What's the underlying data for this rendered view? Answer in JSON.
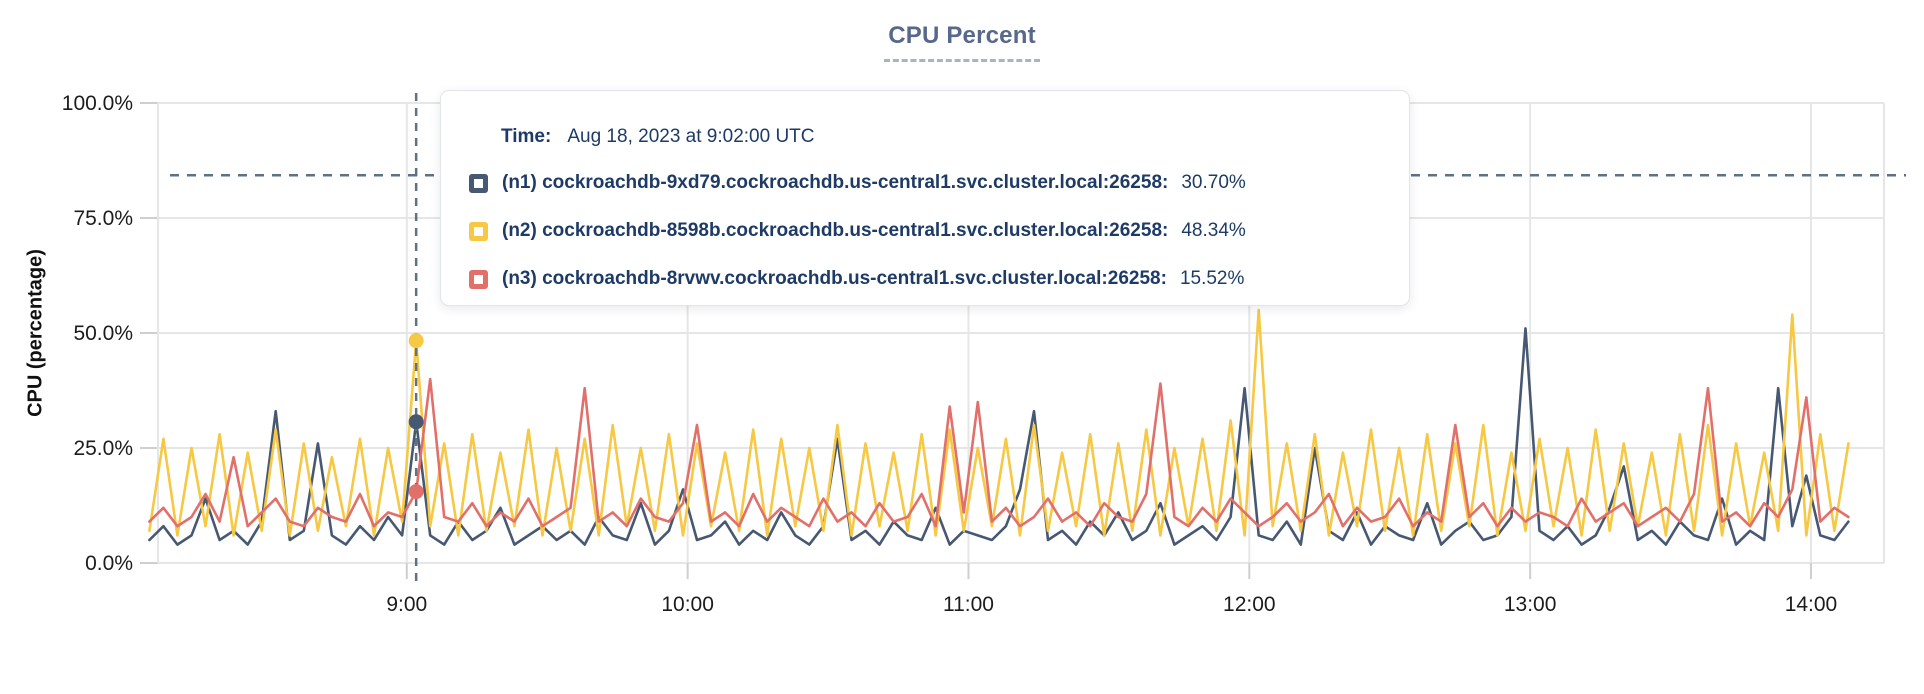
{
  "title": "CPU Percent",
  "colors": {
    "title_text": "#57688c",
    "title_underline": "#aab3c1",
    "grid": "#e6e6e6",
    "tick_mark": "#cfcfcf",
    "axis_text": "#1c1c1c",
    "guideline_dashed": "#5f7183",
    "tooltip_text": "#1d3b66",
    "series_n1": "#475872",
    "series_n2": "#f6c843",
    "series_n3": "#e1706b"
  },
  "tooltip": {
    "time_label": "Time:",
    "time_value": "Aug 18, 2023 at 9:02:00 UTC",
    "rows": [
      {
        "label": "(n1) cockroachdb-9xd79.cockroachdb.us-central1.svc.cluster.local:26258:",
        "value": "30.70%",
        "color": "#475872"
      },
      {
        "label": "(n2) cockroachdb-8598b.cockroachdb.us-central1.svc.cluster.local:26258:",
        "value": "48.34%",
        "color": "#f6c843"
      },
      {
        "label": "(n3) cockroachdb-8rvwv.cockroachdb.us-central1.svc.cluster.local:26258:",
        "value": "15.52%",
        "color": "#e1706b"
      }
    ]
  },
  "chart_data": {
    "type": "line",
    "title": "CPU Percent",
    "ylabel": "CPU (percentage)",
    "ylim": [
      0,
      100
    ],
    "grid": true,
    "legend_position": "tooltip-overlay",
    "yticks": [
      {
        "value": 100,
        "label": "100.0%"
      },
      {
        "value": 75,
        "label": "75.0%"
      },
      {
        "value": 50,
        "label": "50.0%"
      },
      {
        "value": 25,
        "label": "25.0%"
      },
      {
        "value": 0,
        "label": "0.0%"
      }
    ],
    "x_domain_min": [
      483,
      855.6
    ],
    "xticks": [
      {
        "t": 540,
        "label": "9:00"
      },
      {
        "t": 600,
        "label": "10:00"
      },
      {
        "t": 660,
        "label": "11:00"
      },
      {
        "t": 720,
        "label": "12:00"
      },
      {
        "t": 780,
        "label": "13:00"
      },
      {
        "t": 840,
        "label": "14:00"
      }
    ],
    "threshold_percent": 84.3,
    "x_start_min": 485,
    "x_step_min": 3,
    "hover": {
      "t": 542,
      "time_label": "Aug 18, 2023 at 9:02:00 UTC",
      "values": {
        "n1": 30.7,
        "n2": 48.34,
        "n3": 15.52
      }
    },
    "series": [
      {
        "id": "n1",
        "name": "(n1) cockroachdb-9xd79.cockroachdb.us-central1.svc.cluster.local:26258",
        "color": "#475872",
        "values": [
          5,
          8,
          4,
          6,
          14,
          5,
          7,
          4,
          9,
          33,
          5,
          7,
          26,
          6,
          4,
          8,
          5,
          10,
          6,
          30.7,
          6,
          4,
          9,
          5,
          7,
          12,
          4,
          6,
          8,
          5,
          7,
          4,
          10,
          6,
          5,
          13,
          4,
          7,
          16,
          5,
          6,
          9,
          4,
          7,
          5,
          11,
          6,
          4,
          8,
          27,
          5,
          7,
          4,
          9,
          6,
          5,
          12,
          4,
          7,
          6,
          5,
          8,
          16,
          33,
          5,
          7,
          4,
          9,
          6,
          11,
          5,
          7,
          13,
          4,
          6,
          8,
          5,
          10,
          38,
          6,
          5,
          9,
          4,
          25,
          7,
          5,
          11,
          4,
          8,
          6,
          5,
          13,
          4,
          7,
          9,
          5,
          6,
          10,
          51,
          7,
          5,
          8,
          4,
          6,
          12,
          21,
          5,
          7,
          4,
          9,
          6,
          5,
          14,
          4,
          7,
          5,
          38,
          8,
          19,
          6,
          5,
          9
        ]
      },
      {
        "id": "n2",
        "name": "(n2) cockroachdb-8598b.cockroachdb.us-central1.svc.cluster.local:26258",
        "color": "#f6c843",
        "values": [
          7,
          27,
          6,
          25,
          8,
          28,
          6,
          24,
          7,
          29,
          6,
          26,
          7,
          23,
          8,
          27,
          6,
          25,
          9,
          48.34,
          8,
          26,
          6,
          28,
          7,
          24,
          8,
          29,
          6,
          25,
          7,
          27,
          6,
          30,
          8,
          25,
          7,
          28,
          6,
          26,
          8,
          24,
          7,
          29,
          6,
          27,
          8,
          25,
          7,
          30,
          6,
          26,
          8,
          24,
          7,
          28,
          6,
          29,
          7,
          25,
          8,
          27,
          6,
          30,
          7,
          24,
          8,
          28,
          6,
          26,
          7,
          29,
          6,
          25,
          8,
          27,
          7,
          31,
          6,
          55,
          8,
          26,
          7,
          28,
          6,
          24,
          8,
          29,
          7,
          25,
          6,
          28,
          7,
          26,
          8,
          30,
          6,
          24,
          7,
          27,
          8,
          25,
          6,
          29,
          7,
          26,
          8,
          24,
          6,
          28,
          7,
          30,
          6,
          26,
          8,
          24,
          7,
          54,
          6,
          28,
          7,
          26
        ]
      },
      {
        "id": "n3",
        "name": "(n3) cockroachdb-8rvwv.cockroachdb.us-central1.svc.cluster.local:26258",
        "color": "#e1706b",
        "values": [
          9,
          12,
          8,
          10,
          15,
          9,
          23,
          8,
          11,
          14,
          9,
          8,
          12,
          10,
          9,
          15,
          8,
          11,
          10,
          15.52,
          40,
          10,
          9,
          13,
          8,
          11,
          9,
          14,
          8,
          10,
          12,
          38,
          9,
          11,
          8,
          14,
          10,
          9,
          13,
          30,
          9,
          11,
          8,
          15,
          9,
          12,
          10,
          8,
          14,
          9,
          11,
          8,
          13,
          9,
          10,
          15,
          8,
          34,
          11,
          35,
          9,
          12,
          8,
          10,
          14,
          9,
          11,
          8,
          13,
          10,
          9,
          15,
          39,
          10,
          8,
          12,
          9,
          14,
          11,
          8,
          10,
          13,
          9,
          11,
          15,
          8,
          12,
          9,
          10,
          14,
          8,
          11,
          9,
          30,
          10,
          13,
          8,
          12,
          9,
          11,
          10,
          8,
          14,
          9,
          11,
          13,
          8,
          10,
          12,
          9,
          15,
          38,
          9,
          11,
          8,
          13,
          10,
          16,
          36,
          9,
          12,
          10
        ]
      }
    ]
  }
}
